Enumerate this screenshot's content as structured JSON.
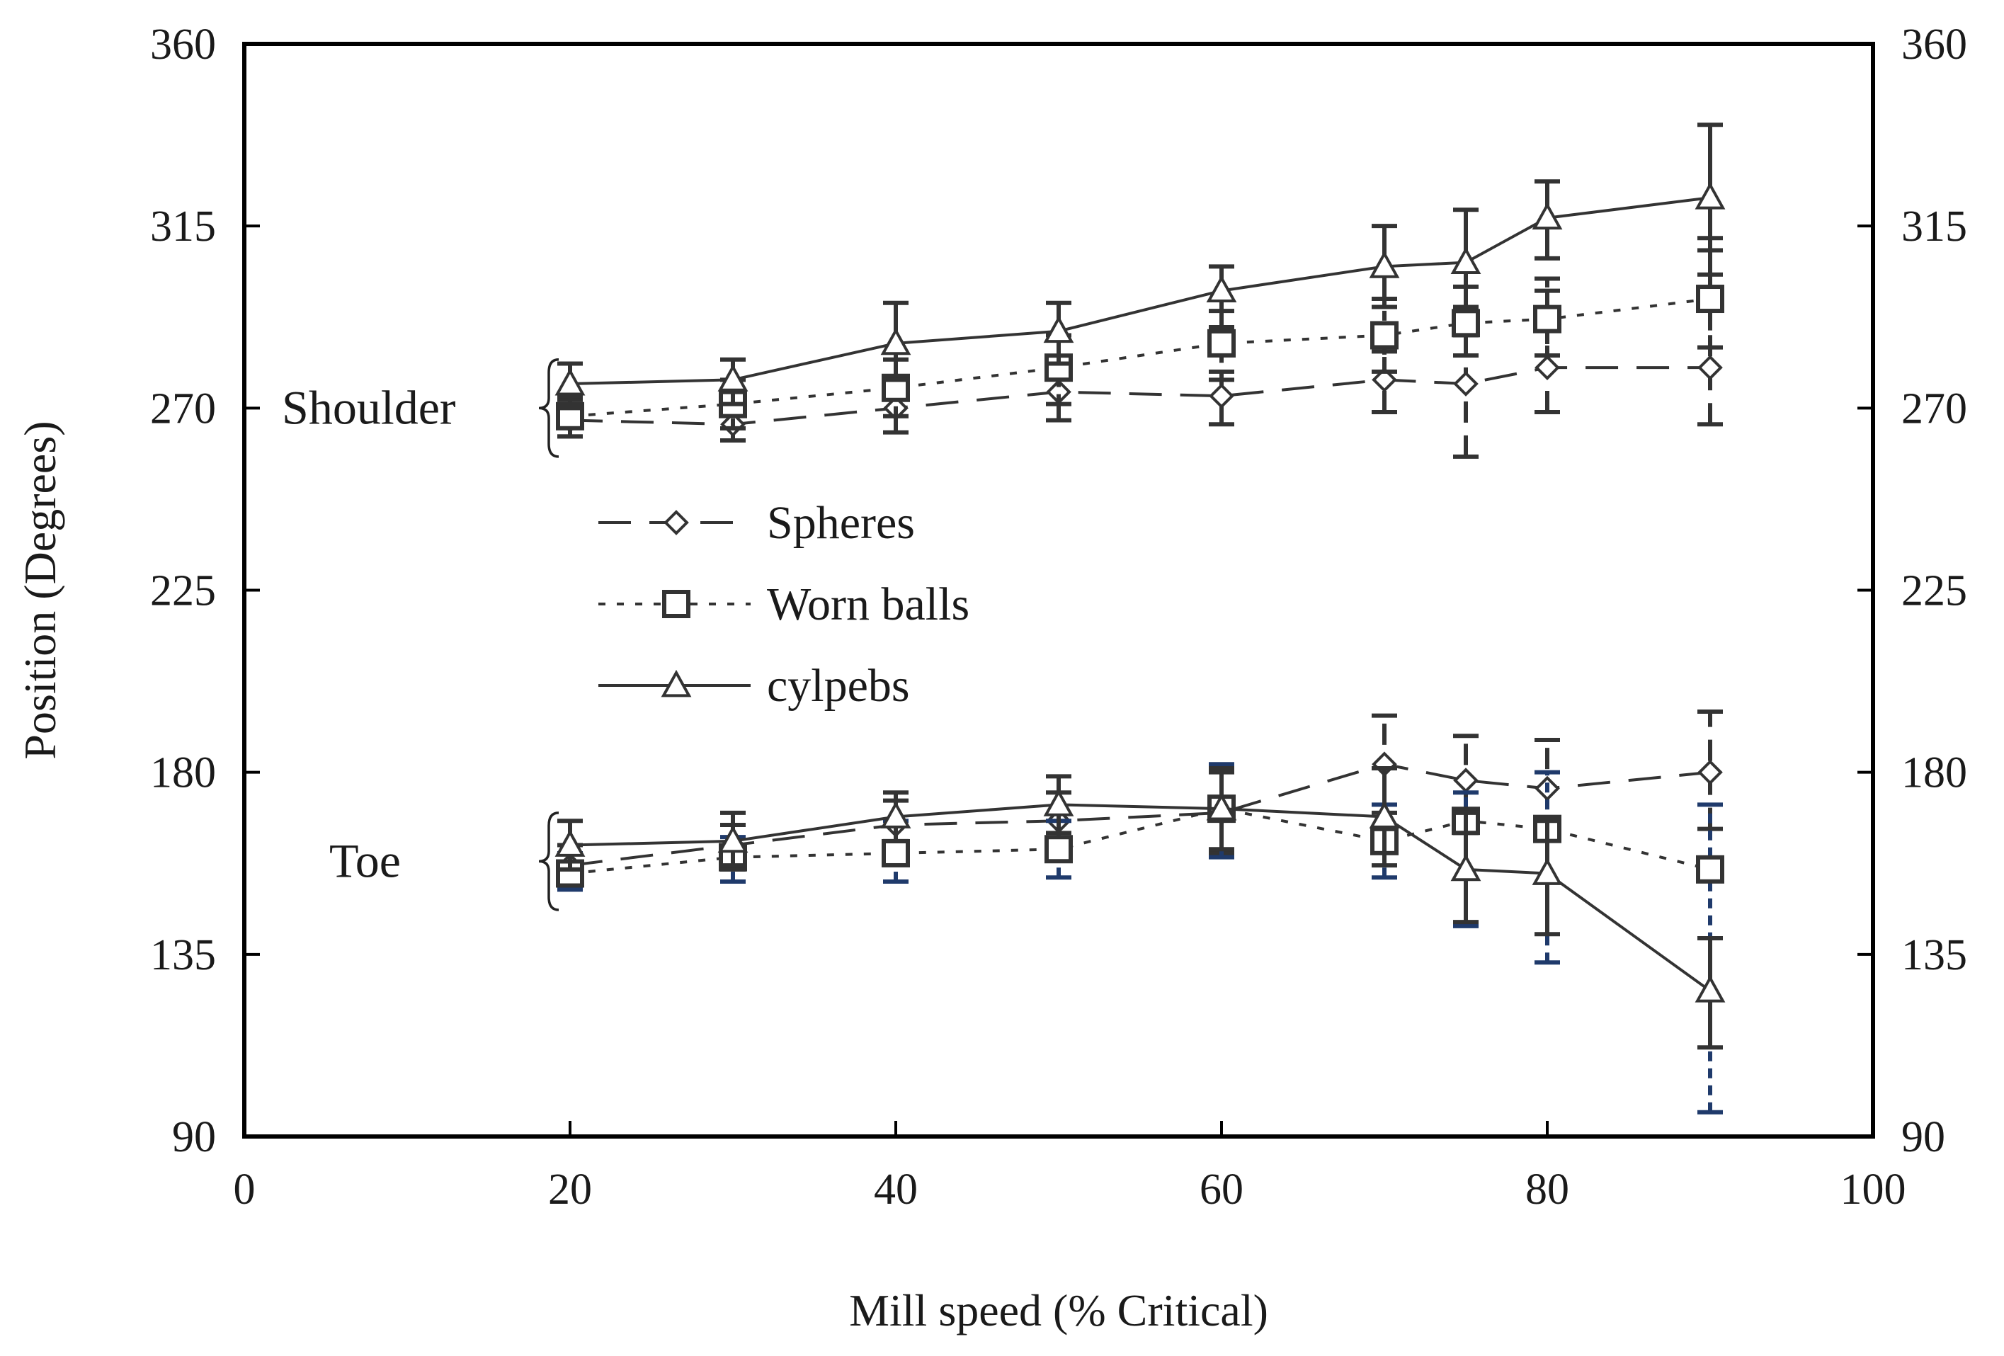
{
  "chart_data": {
    "type": "line",
    "title": "",
    "xlabel": "Mill speed (% Critical)",
    "ylabel": "Position (Degrees)",
    "xlim": [
      0,
      100
    ],
    "ylim": [
      90,
      360
    ],
    "x_ticks": [
      0,
      20,
      40,
      60,
      80,
      100
    ],
    "y_ticks": [
      90,
      135,
      180,
      225,
      270,
      315,
      360
    ],
    "secondary_y_ticks": [
      90,
      135,
      180,
      225,
      270,
      315,
      360
    ],
    "grid": false,
    "legend_position": "center-left",
    "group_labels": [
      {
        "text": "Shoulder",
        "y_range": [
          258,
          282
        ]
      },
      {
        "text": "Toe",
        "y_range": [
          146,
          170
        ]
      }
    ],
    "series": [
      {
        "name": "Spheres",
        "group": "Shoulder",
        "style": "dashed",
        "marker": "diamond",
        "color": "#333333",
        "x": [
          20,
          30,
          40,
          50,
          60,
          70,
          75,
          80,
          90
        ],
        "y": [
          267,
          266,
          270,
          274,
          273,
          277,
          276,
          280,
          280
        ],
        "err_low": [
          263,
          262,
          264,
          267,
          266,
          269,
          258,
          269,
          266
        ],
        "err_high": [
          272,
          271,
          276,
          280,
          279,
          284,
          288,
          299,
          312
        ]
      },
      {
        "name": "Worn balls",
        "group": "Shoulder",
        "style": "dotted",
        "marker": "square",
        "color": "#333333",
        "x": [
          20,
          30,
          40,
          50,
          60,
          70,
          75,
          80,
          90
        ],
        "y": [
          268,
          271,
          275,
          280,
          286,
          288,
          291,
          292,
          297
        ],
        "err_low": [
          263,
          265,
          268,
          271,
          277,
          279,
          283,
          283,
          285
        ],
        "err_high": [
          273,
          277,
          282,
          288,
          294,
          297,
          300,
          302,
          309
        ]
      },
      {
        "name": "cylpebs",
        "group": "Shoulder",
        "style": "solid",
        "marker": "triangle",
        "color": "#333333",
        "x": [
          20,
          30,
          40,
          50,
          60,
          70,
          75,
          80,
          90
        ],
        "y": [
          276,
          277,
          286,
          289,
          299,
          305,
          306,
          317,
          322
        ],
        "err_low": [
          270,
          271,
          277,
          281,
          290,
          295,
          295,
          307,
          303
        ],
        "err_high": [
          281,
          282,
          296,
          296,
          305,
          315,
          319,
          326,
          340
        ]
      },
      {
        "name": "Spheres",
        "group": "Toe",
        "style": "dashed",
        "marker": "diamond",
        "color": "#333333",
        "x": [
          20,
          30,
          40,
          50,
          60,
          70,
          75,
          80,
          90
        ],
        "y": [
          157,
          162,
          167,
          168,
          170,
          182,
          178,
          176,
          180
        ],
        "err_low": [
          152,
          156,
          160,
          161,
          160,
          170,
          165,
          164,
          166
        ],
        "err_high": [
          162,
          167,
          173,
          175,
          180,
          194,
          189,
          188,
          195
        ]
      },
      {
        "name": "Worn balls",
        "group": "Toe",
        "style": "dotted",
        "marker": "square",
        "color": "#1f3a6b",
        "x": [
          20,
          30,
          40,
          50,
          60,
          70,
          75,
          80,
          90
        ],
        "y": [
          155,
          159,
          160,
          161,
          171,
          163,
          168,
          166,
          156
        ],
        "err_low": [
          151,
          153,
          153,
          154,
          159,
          154,
          142,
          133,
          96
        ],
        "err_high": [
          160,
          164,
          168,
          168,
          182,
          172,
          175,
          180,
          172
        ]
      },
      {
        "name": "cylpebs",
        "group": "Toe",
        "style": "solid",
        "marker": "triangle",
        "color": "#333333",
        "x": [
          20,
          30,
          40,
          50,
          60,
          70,
          75,
          80,
          90
        ],
        "y": [
          162,
          163,
          169,
          172,
          171,
          169,
          156,
          155,
          126
        ],
        "err_low": [
          156,
          157,
          163,
          165,
          161,
          157,
          143,
          140,
          112
        ],
        "err_high": [
          168,
          170,
          175,
          179,
          181,
          181,
          170,
          168,
          139
        ]
      }
    ]
  }
}
